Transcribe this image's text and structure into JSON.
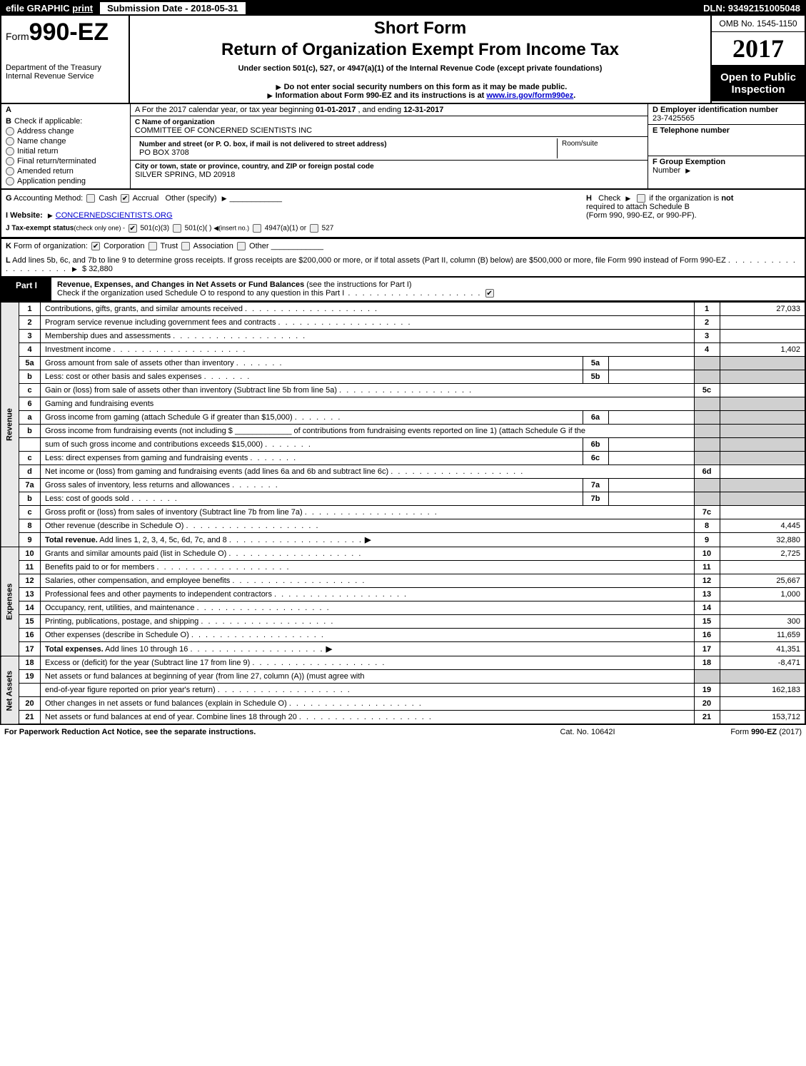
{
  "topbar": {
    "efile_prefix": "efile",
    "efile_text": "GRAPHIC",
    "print": "print",
    "submission": "Submission Date - 2018-05-31",
    "dln": "DLN: 93492151005048"
  },
  "header": {
    "form_prefix": "Form",
    "form_num": "990-EZ",
    "dept1": "Department of the Treasury",
    "dept2": "Internal Revenue Service",
    "short_form": "Short Form",
    "return_title": "Return of Organization Exempt From Income Tax",
    "under": "Under section 501(c), 527, or 4947(a)(1) of the Internal Revenue Code (except private foundations)",
    "donot": "Do not enter social security numbers on this form as it may be made public.",
    "info_prefix": "Information about Form 990-EZ and its instructions is at ",
    "info_link": "www.irs.gov/form990ez",
    "info_suffix": ".",
    "omb": "OMB No. 1545-1150",
    "year": "2017",
    "open1": "Open to Public",
    "open2": "Inspection"
  },
  "sectionA": {
    "a_line_pre": "A  For the 2017 calendar year, or tax year beginning ",
    "a_begin": "01-01-2017",
    "a_mid": " , and ending ",
    "a_end": "12-31-2017",
    "b_label": "B",
    "b_check": "Check if applicable:",
    "b_items": [
      "Address change",
      "Name change",
      "Initial return",
      "Final return/terminated",
      "Amended return",
      "Application pending"
    ],
    "c_label": "C",
    "c_name_lbl": "Name of organization",
    "c_name": "COMMITTEE OF CONCERNED SCIENTISTS INC",
    "addr_lbl": "Number and street (or P. O. box, if mail is not delivered to street address)",
    "addr": "PO BOX 3708",
    "room_lbl": "Room/suite",
    "city_lbl": "City or town, state or province, country, and ZIP or foreign postal code",
    "city": "SILVER SPRING, MD  20918",
    "d_label": "D Employer identification number",
    "d_ein": "23-7425565",
    "e_label": "E Telephone number",
    "f_label": "F Group Exemption",
    "f_label2": "Number"
  },
  "sectionGH": {
    "g_label": "G",
    "g_text": " Accounting Method:",
    "g_cash": "Cash",
    "g_accrual": "Accrual",
    "g_other": "Other (specify)",
    "h_label": "H",
    "h_check": "Check",
    "h_text1": "if the organization is ",
    "h_not": "not",
    "h_text2": "required to attach Schedule B",
    "h_text3": "(Form 990, 990-EZ, or 990-PF).",
    "i_label": "I Website:",
    "i_site": "CONCERNEDSCIENTISTS.ORG",
    "j_label": "J Tax-exempt status",
    "j_paren": "(check only one) -",
    "j_501c3": "501(c)(3)",
    "j_501c": "501(c)(  )",
    "j_insert": "(insert no.)",
    "j_4947": "4947(a)(1) or",
    "j_527": "527"
  },
  "sectionKL": {
    "k_label": "K",
    "k_text": " Form of organization:",
    "k_corp": "Corporation",
    "k_trust": "Trust",
    "k_assoc": "Association",
    "k_other": "Other",
    "l_label": "L",
    "l_text1": " Add lines 5b, 6c, and 7b to line 9 to determine gross receipts. If gross receipts are $200,000 or more, or if total assets (Part II, column (B) below) are $500,000 or more, file Form 990 instead of Form 990-EZ",
    "l_amount": "$ 32,880"
  },
  "part1": {
    "label": "Part I",
    "title_bold": "Revenue, Expenses, and Changes in Net Assets or Fund Balances",
    "title_rest": " (see the instructions for Part I)",
    "check_text": "Check if the organization used Schedule O to respond to any question in this Part I"
  },
  "section_labels": {
    "revenue": "Revenue",
    "expenses": "Expenses",
    "netassets": "Net Assets"
  },
  "lines": [
    {
      "n": "1",
      "d": "Contributions, gifts, grants, and similar amounts received",
      "r": "1",
      "v": "27,033"
    },
    {
      "n": "2",
      "d": "Program service revenue including government fees and contracts",
      "r": "2",
      "v": ""
    },
    {
      "n": "3",
      "d": "Membership dues and assessments",
      "r": "3",
      "v": ""
    },
    {
      "n": "4",
      "d": "Investment income",
      "r": "4",
      "v": "1,402"
    },
    {
      "n": "5a",
      "d": "Gross amount from sale of assets other than inventory",
      "sub": "5a",
      "shade": true
    },
    {
      "n": "b",
      "d": "Less: cost or other basis and sales expenses",
      "sub": "5b",
      "shade": true
    },
    {
      "n": "c",
      "d": "Gain or (loss) from sale of assets other than inventory (Subtract line 5b from line 5a)",
      "r": "5c",
      "v": ""
    },
    {
      "n": "6",
      "d": "Gaming and fundraising events",
      "shade": true,
      "noright": true
    },
    {
      "n": "a",
      "d": "Gross income from gaming (attach Schedule G if greater than $15,000)",
      "sub": "6a",
      "shade": true
    },
    {
      "n": "b",
      "d": "Gross income from fundraising events (not including $ _____________ of contributions from fundraising events reported on line 1) (attach Schedule G if the",
      "noright": true,
      "shade": true
    },
    {
      "n": "",
      "d": "sum of such gross income and contributions exceeds $15,000)",
      "sub": "6b",
      "shade": true
    },
    {
      "n": "c",
      "d": "Less: direct expenses from gaming and fundraising events",
      "sub": "6c",
      "shade": true
    },
    {
      "n": "d",
      "d": "Net income or (loss) from gaming and fundraising events (add lines 6a and 6b and subtract line 6c)",
      "r": "6d",
      "v": ""
    },
    {
      "n": "7a",
      "d": "Gross sales of inventory, less returns and allowances",
      "sub": "7a",
      "shade": true
    },
    {
      "n": "b",
      "d": "Less: cost of goods sold",
      "sub": "7b",
      "shade": true
    },
    {
      "n": "c",
      "d": "Gross profit or (loss) from sales of inventory (Subtract line 7b from line 7a)",
      "r": "7c",
      "v": ""
    },
    {
      "n": "8",
      "d": "Other revenue (describe in Schedule O)",
      "r": "8",
      "v": "4,445"
    },
    {
      "n": "9",
      "d_bold": "Total revenue.",
      "d": " Add lines 1, 2, 3, 4, 5c, 6d, 7c, and 8",
      "r": "9",
      "v": "32,880",
      "arrow": true
    }
  ],
  "exp_lines": [
    {
      "n": "10",
      "d": "Grants and similar amounts paid (list in Schedule O)",
      "r": "10",
      "v": "2,725"
    },
    {
      "n": "11",
      "d": "Benefits paid to or for members",
      "r": "11",
      "v": ""
    },
    {
      "n": "12",
      "d": "Salaries, other compensation, and employee benefits",
      "r": "12",
      "v": "25,667"
    },
    {
      "n": "13",
      "d": "Professional fees and other payments to independent contractors",
      "r": "13",
      "v": "1,000"
    },
    {
      "n": "14",
      "d": "Occupancy, rent, utilities, and maintenance",
      "r": "14",
      "v": ""
    },
    {
      "n": "15",
      "d": "Printing, publications, postage, and shipping",
      "r": "15",
      "v": "300"
    },
    {
      "n": "16",
      "d": "Other expenses (describe in Schedule O)",
      "r": "16",
      "v": "11,659"
    },
    {
      "n": "17",
      "d_bold": "Total expenses.",
      "d": " Add lines 10 through 16",
      "r": "17",
      "v": "41,351",
      "arrow": true
    }
  ],
  "na_lines": [
    {
      "n": "18",
      "d": "Excess or (deficit) for the year (Subtract line 17 from line 9)",
      "r": "18",
      "v": "-8,471"
    },
    {
      "n": "19",
      "d": "Net assets or fund balances at beginning of year (from line 27, column (A)) (must agree with",
      "noright": true,
      "shade": true
    },
    {
      "n": "",
      "d": "end-of-year figure reported on prior year's return)",
      "r": "19",
      "v": "162,183"
    },
    {
      "n": "20",
      "d": "Other changes in net assets or fund balances (explain in Schedule O)",
      "r": "20",
      "v": ""
    },
    {
      "n": "21",
      "d": "Net assets or fund balances at end of year. Combine lines 18 through 20",
      "r": "21",
      "v": "153,712"
    }
  ],
  "footer": {
    "left": "For Paperwork Reduction Act Notice, see the separate instructions.",
    "mid": "Cat. No. 10642I",
    "right_pre": "Form ",
    "right_bold": "990-EZ",
    "right_suf": " (2017)"
  }
}
